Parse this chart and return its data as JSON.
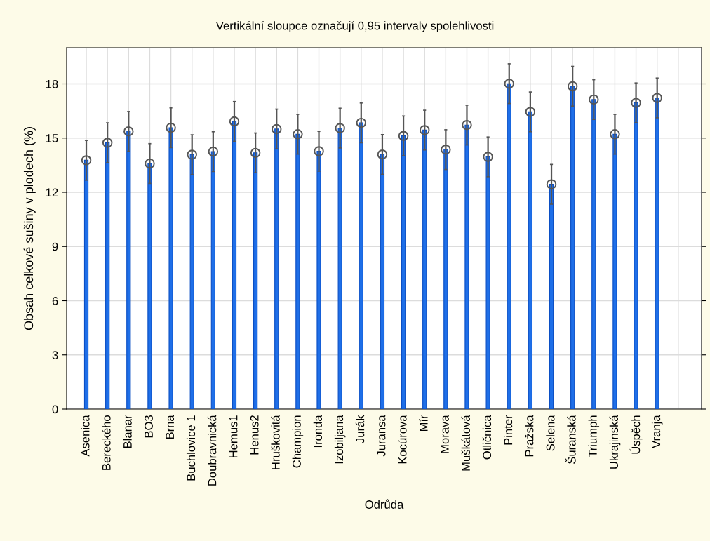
{
  "chart_data": {
    "type": "bar",
    "title": "Vertikální sloupce označují 0,95 intervaly spolehlivosti",
    "xlabel": "Odrůda",
    "ylabel": "Obsah celkové sušiny v plodech (%)",
    "categories": [
      "Asenica",
      "Bereckého",
      "Blanar",
      "BO3",
      "Brna",
      "Buchlovice 1",
      "Doubravnická",
      "Hemus1",
      "Henus2",
      "Hruškovitá",
      "Champion",
      "Ironda",
      "Izobiljana",
      "Jurák",
      "Juransa",
      "Kocúrova",
      "Mír",
      "Morava",
      "Muškátová",
      "Otličnica",
      "Pinter",
      "Pražska",
      "Selena",
      "Šuranská",
      "Triumph",
      "Ukrajinská",
      "Úspěch",
      "Vranja"
    ],
    "series": [
      {
        "color": "#1f6fe8",
        "values": [
          13.77,
          14.74,
          15.37,
          13.59,
          15.57,
          14.08,
          14.25,
          15.92,
          14.18,
          15.5,
          15.21,
          14.27,
          15.55,
          15.84,
          14.09,
          15.12,
          15.44,
          14.36,
          15.72,
          13.96,
          18.01,
          16.45,
          12.44,
          17.87,
          17.13,
          15.21,
          16.95,
          17.22
        ],
        "errors": [
          1.1,
          1.1,
          1.1,
          1.1,
          1.1,
          1.1,
          1.1,
          1.1,
          1.1,
          1.1,
          1.1,
          1.1,
          1.1,
          1.1,
          1.1,
          1.1,
          1.1,
          1.1,
          1.1,
          1.1,
          1.1,
          1.1,
          1.1,
          1.1,
          1.1,
          1.1,
          1.1,
          1.1
        ]
      },
      {
        "type": "scatter",
        "color": "#555555",
        "marker": "circle",
        "x": [
          "Asenica",
          "Bereckého",
          "Blanar",
          "BO3",
          "Brna",
          "Buchlovice 1",
          "Doubravnická",
          "Hemus1",
          "Henus2",
          "Hruškovitá",
          "Champion",
          "Ironda",
          "Izobiljana",
          "Jurák",
          "Juransa",
          "Kocúrova",
          "Mír",
          "Morava",
          "Muškátová",
          "Otličnica",
          "Pinter",
          "Pražska",
          "Selena",
          "Šuranská",
          "Triumph",
          "Ukrajinská",
          "Úspěch",
          "Vranja"
        ],
        "values": [
          13.77,
          14.74,
          15.37,
          13.59,
          15.57,
          14.08,
          14.25,
          15.92,
          14.18,
          15.5,
          15.21,
          14.27,
          15.55,
          15.84,
          14.09,
          15.12,
          15.44,
          14.36,
          15.72,
          13.96,
          18.01,
          16.45,
          12.44,
          17.87,
          17.13,
          15.21,
          16.95,
          17.22
        ]
      }
    ],
    "ylim": [
      0,
      20
    ],
    "yticks": [
      0,
      3,
      6,
      9,
      12,
      15,
      18
    ],
    "grid": true
  }
}
